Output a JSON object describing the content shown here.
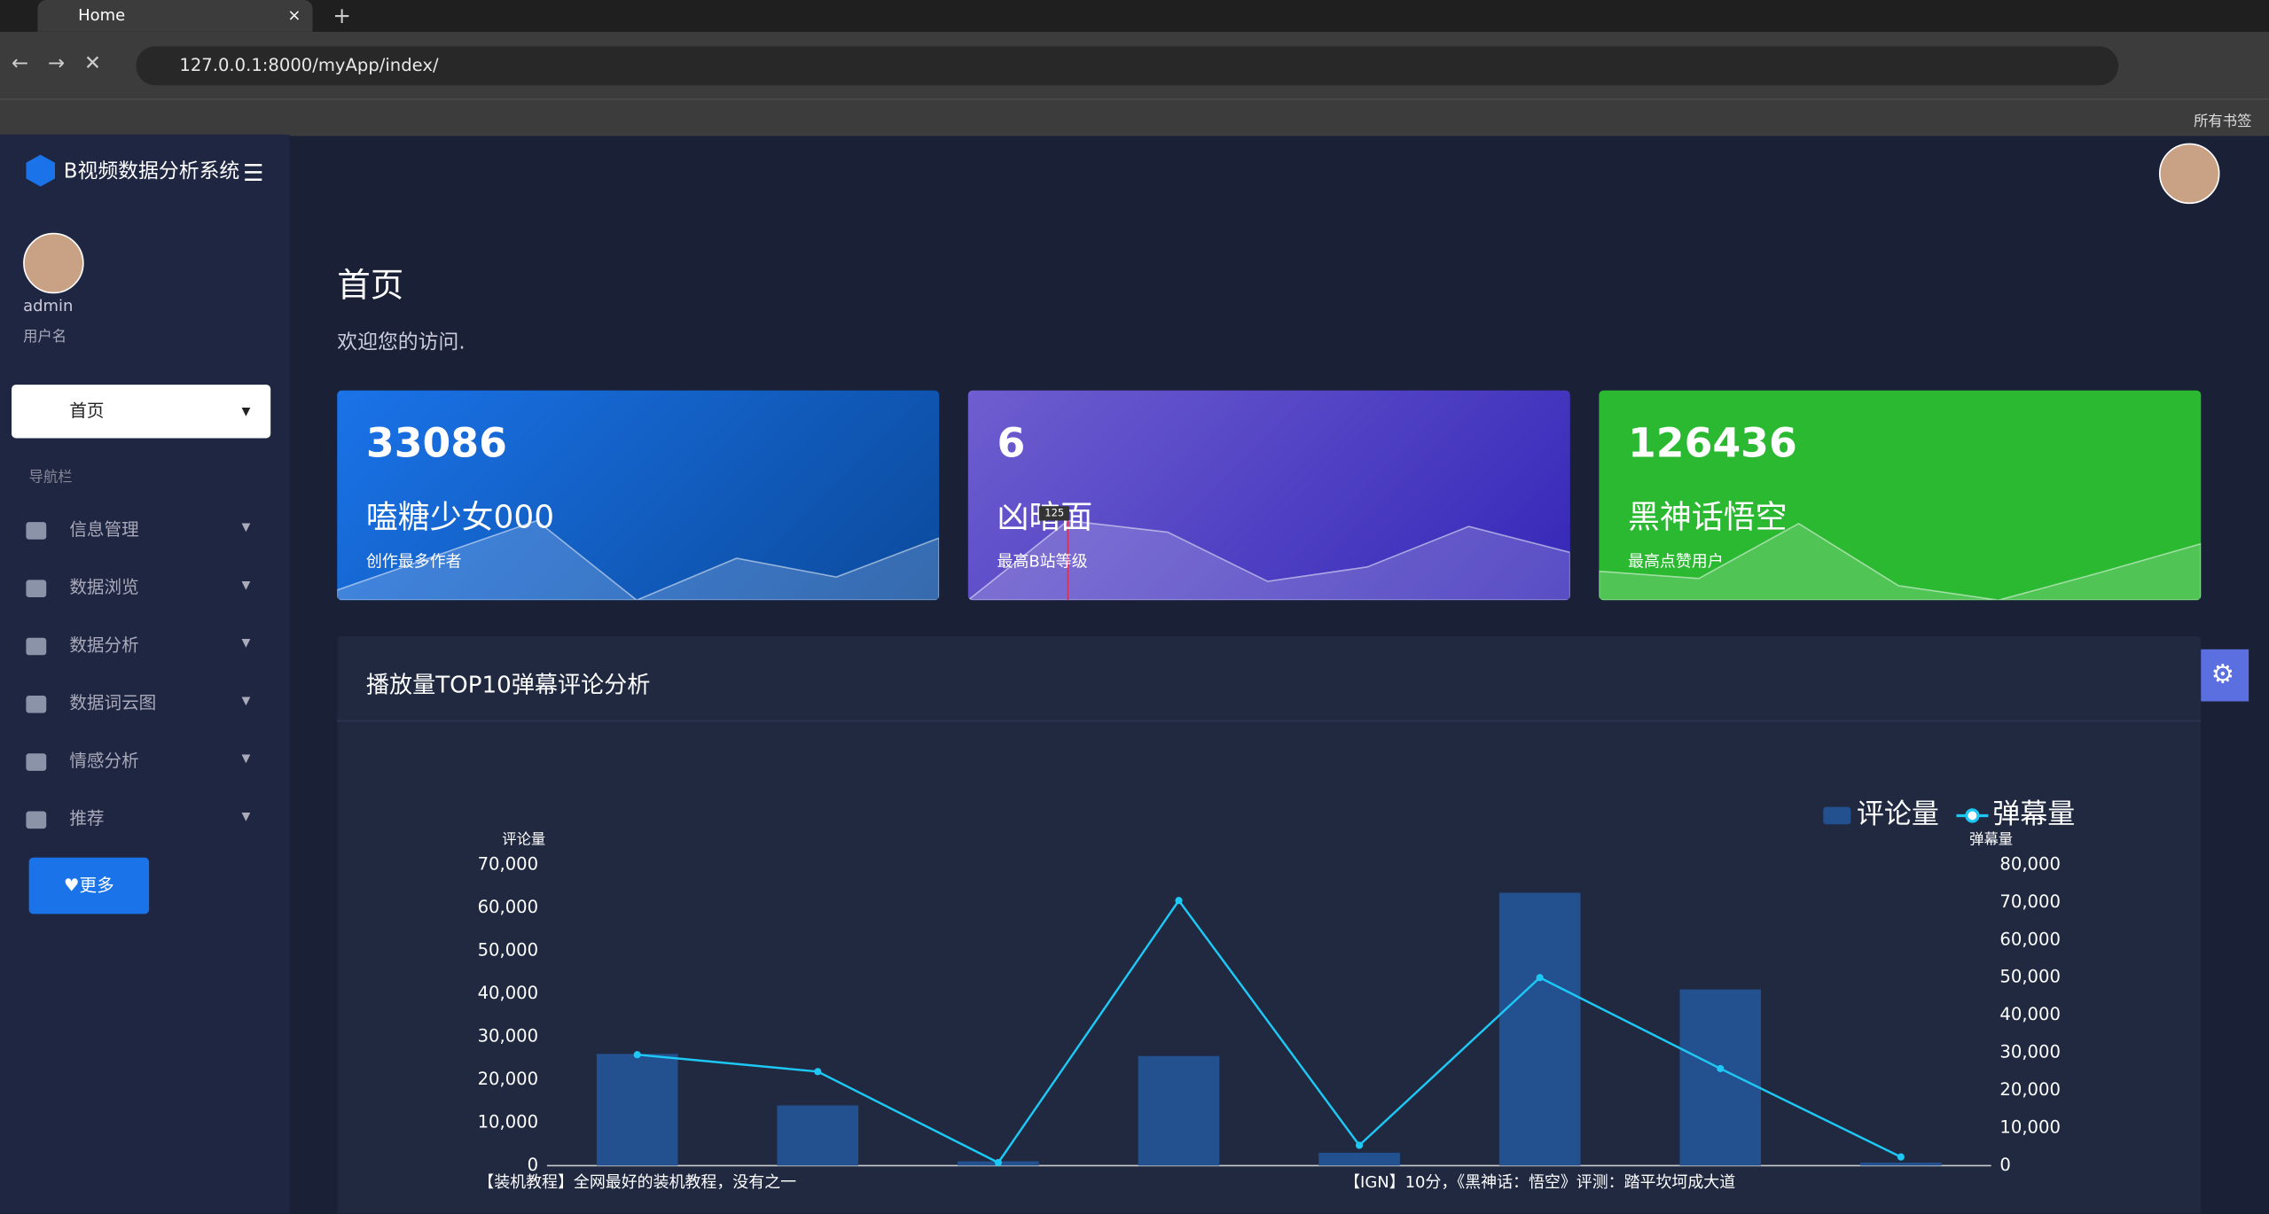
{
  "browser": {
    "tab_title": "Home",
    "url": "127.0.0.1:8000/myApp/index/",
    "bookmarks": "所有书签"
  },
  "sidebar": {
    "brand": "B视频数据分析系统",
    "user_name": "admin",
    "user_role": "用户名",
    "active": "首页",
    "section": "导航栏",
    "menu": [
      "信息管理",
      "数据浏览",
      "数据分析",
      "数据词云图",
      "情感分析",
      "推荐"
    ],
    "button": "更多"
  },
  "header": {
    "title": "首页",
    "subtitle": "欢迎您的访问."
  },
  "cards": [
    {
      "value": 33086,
      "name": "嗑糖少女000",
      "caption": "创作最多作者"
    },
    {
      "value": 6,
      "name": "凶暗面",
      "caption": "最高B站等级",
      "tooltip": "125"
    },
    {
      "value": 126436,
      "name": "黑神话悟空",
      "caption": "最高点赞用户"
    }
  ],
  "chart_data": {
    "type": "bar-line",
    "title": "播放量TOP10弹幕评论分析",
    "categories": [
      "【装机教程】全网最好的装机教程，没有之一",
      null,
      null,
      null,
      null,
      "【IGN】10分，《黑神话：悟空》评测：踏平坎坷成大道",
      null,
      null
    ],
    "series": [
      {
        "name": "评论量",
        "type": "bar",
        "color": "#23508f",
        "values": [
          26000,
          14000,
          1000,
          25500,
          3000,
          63500,
          41000,
          700
        ]
      },
      {
        "name": "弹幕量",
        "type": "line",
        "color": "#1ec8f5",
        "axis": "y2",
        "values": [
          29500,
          25000,
          800,
          70500,
          5400,
          50000,
          25800,
          2300
        ]
      }
    ],
    "ylabel": "评论量",
    "y2label": "弹幕量",
    "ylim": [
      0,
      70000
    ],
    "yticks": [
      0,
      {
        "value": 10000,
        "label": "10,000"
      },
      {
        "value": 20000,
        "label": "20,000"
      },
      {
        "value": 30000,
        "label": "30,000"
      },
      {
        "value": 40000,
        "label": "40,000"
      },
      {
        "value": 50000,
        "label": "50,000"
      },
      {
        "value": 60000,
        "label": "60,000"
      },
      {
        "value": 70000,
        "label": "70,000"
      }
    ],
    "y2lim": [
      0,
      80000
    ],
    "y2ticks": [
      0,
      {
        "value": 10000,
        "label": "10,000"
      },
      {
        "value": 20000,
        "label": "20,000"
      },
      {
        "value": 30000,
        "label": "30,000"
      },
      {
        "value": 40000,
        "label": "40,000"
      },
      {
        "value": 50000,
        "label": "50,000"
      },
      {
        "value": 60000,
        "label": "60,000"
      },
      {
        "value": 70000,
        "label": "70,000"
      },
      {
        "value": 80000,
        "label": "80,000"
      }
    ],
    "legend": "top-right"
  }
}
